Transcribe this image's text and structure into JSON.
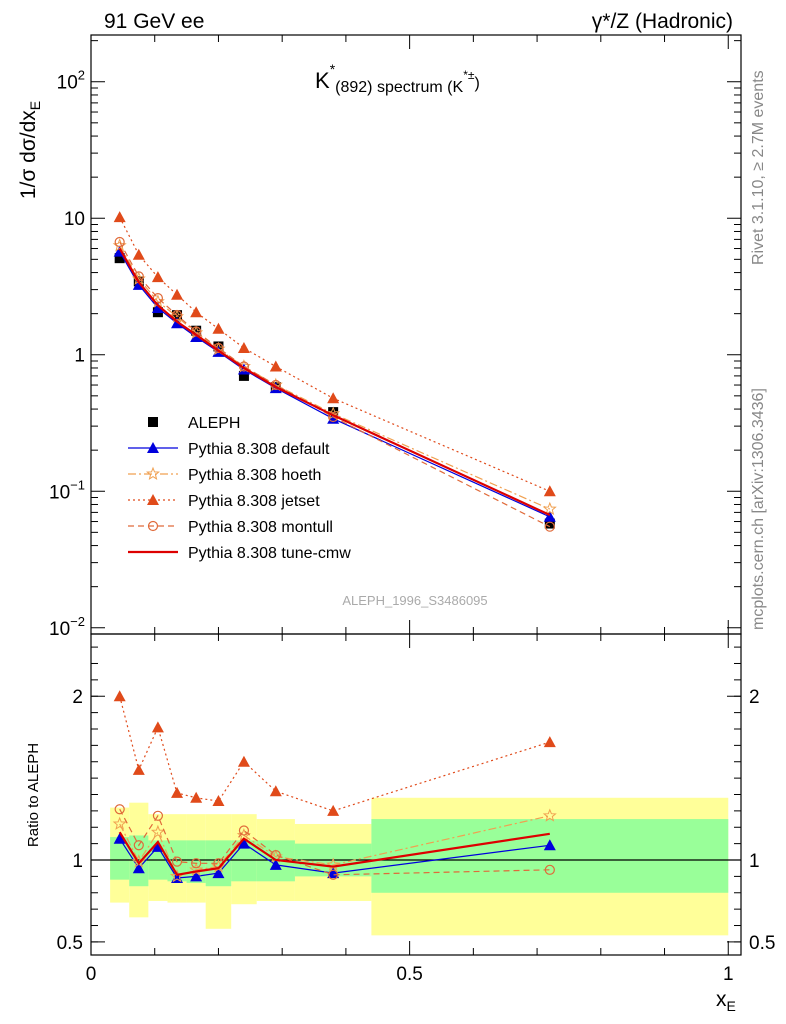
{
  "header": {
    "left": "91 GeV ee",
    "right": "γ*/Z (Hadronic)",
    "side_top": "Rivet 3.1.10, ≥ 2.7M events",
    "side_bottom": "mcplots.cern.ch [arXiv:1306.3436]"
  },
  "chart_data": [
    {
      "type": "line",
      "panel": "main",
      "title": "K*(892) spectrum (K*±)",
      "title_parts": {
        "base": "K",
        "sup": "*",
        "sub": "(892) spectrum (K",
        "sup2": "*±",
        "close": ")"
      },
      "ylabel": "1/σ dσ/dx_E",
      "ylabel_parts": {
        "main": "1/σ dσ/dx",
        "sub": "E"
      },
      "yscale": "log",
      "ylim": [
        0.009,
        220
      ],
      "xlim": [
        0,
        1.02
      ],
      "y_ticks": [
        {
          "value": 0.01,
          "label": "10",
          "exp": "−2"
        },
        {
          "value": 0.1,
          "label": "10",
          "exp": "−1"
        },
        {
          "value": 1,
          "label": "1",
          "exp": ""
        },
        {
          "value": 10,
          "label": "10",
          "exp": ""
        },
        {
          "value": 100,
          "label": "10",
          "exp": "2"
        }
      ],
      "watermark": "ALEPH_1996_S3486095",
      "legend_position": "bottom-left",
      "x": [
        0.045,
        0.075,
        0.105,
        0.135,
        0.165,
        0.2,
        0.24,
        0.29,
        0.38,
        0.72
      ],
      "series": [
        {
          "name": "ALEPH",
          "style": "data",
          "color": "#000000",
          "values": [
            5.1,
            3.45,
            2.05,
            1.95,
            1.5,
            1.15,
            0.7,
            0.58,
            0.38,
            0.058
          ]
        },
        {
          "name": "Pythia 8.308 default",
          "style": "solid",
          "marker": "triangle",
          "color": "#0000dd",
          "values": [
            5.7,
            3.25,
            2.2,
            1.7,
            1.35,
            1.05,
            0.78,
            0.57,
            0.34,
            0.065
          ]
        },
        {
          "name": "Pythia 8.308 hoeth",
          "style": "dashdot",
          "marker": "star",
          "color": "#f0a050",
          "values": [
            6.3,
            3.6,
            2.45,
            1.9,
            1.45,
            1.1,
            0.82,
            0.6,
            0.37,
            0.074
          ]
        },
        {
          "name": "Pythia 8.308 jetset",
          "style": "dotted",
          "marker": "triangle",
          "color": "#e04a1a",
          "values": [
            10.2,
            5.4,
            3.7,
            2.75,
            2.05,
            1.55,
            1.12,
            0.82,
            0.48,
            0.1
          ]
        },
        {
          "name": "Pythia 8.308 montull",
          "style": "dashed",
          "marker": "circle",
          "color": "#e06a3a",
          "values": [
            6.7,
            3.75,
            2.6,
            1.95,
            1.48,
            1.12,
            0.82,
            0.6,
            0.35,
            0.055
          ]
        },
        {
          "name": "Pythia 8.308 tune-cmw",
          "style": "solid",
          "marker": "none",
          "color": "#dd0000",
          "values": [
            6.0,
            3.4,
            2.3,
            1.75,
            1.4,
            1.07,
            0.8,
            0.58,
            0.36,
            0.067
          ]
        }
      ]
    },
    {
      "type": "line",
      "panel": "ratio",
      "ylabel": "Ratio to ALEPH",
      "xlabel": "x_E",
      "xlabel_parts": {
        "main": "x",
        "sub": "E"
      },
      "ylim": [
        0.42,
        2.38
      ],
      "xlim": [
        0,
        1.02
      ],
      "y_ticks": [
        {
          "value": 0.5,
          "label": "0.5"
        },
        {
          "value": 1,
          "label": "1"
        },
        {
          "value": 2,
          "label": "2"
        }
      ],
      "x_ticks": [
        {
          "value": 0,
          "label": "0"
        },
        {
          "value": 0.5,
          "label": "0.5"
        },
        {
          "value": 1,
          "label": "1"
        }
      ],
      "reference_line": 1,
      "bands": [
        {
          "x0": 0.03,
          "x1": 0.06,
          "stat_lo": 0.88,
          "stat_hi": 1.14,
          "tot_lo": 0.74,
          "tot_hi": 1.32
        },
        {
          "x0": 0.06,
          "x1": 0.09,
          "stat_lo": 0.84,
          "stat_hi": 1.15,
          "tot_lo": 0.65,
          "tot_hi": 1.35
        },
        {
          "x0": 0.09,
          "x1": 0.12,
          "stat_lo": 0.88,
          "stat_hi": 1.12,
          "tot_lo": 0.75,
          "tot_hi": 1.28
        },
        {
          "x0": 0.12,
          "x1": 0.15,
          "stat_lo": 0.87,
          "stat_hi": 1.12,
          "tot_lo": 0.74,
          "tot_hi": 1.28
        },
        {
          "x0": 0.15,
          "x1": 0.18,
          "stat_lo": 0.86,
          "stat_hi": 1.12,
          "tot_lo": 0.74,
          "tot_hi": 1.28
        },
        {
          "x0": 0.18,
          "x1": 0.22,
          "stat_lo": 0.84,
          "stat_hi": 1.12,
          "tot_lo": 0.58,
          "tot_hi": 1.28
        },
        {
          "x0": 0.22,
          "x1": 0.26,
          "stat_lo": 0.87,
          "stat_hi": 1.12,
          "tot_lo": 0.73,
          "tot_hi": 1.28
        },
        {
          "x0": 0.26,
          "x1": 0.32,
          "stat_lo": 0.87,
          "stat_hi": 1.12,
          "tot_lo": 0.75,
          "tot_hi": 1.25
        },
        {
          "x0": 0.32,
          "x1": 0.44,
          "stat_lo": 0.9,
          "stat_hi": 1.1,
          "tot_lo": 0.75,
          "tot_hi": 1.22
        },
        {
          "x0": 0.44,
          "x1": 1.0,
          "stat_lo": 0.8,
          "stat_hi": 1.25,
          "tot_lo": 0.54,
          "tot_hi": 1.38
        }
      ],
      "x": [
        0.045,
        0.075,
        0.105,
        0.135,
        0.165,
        0.2,
        0.24,
        0.29,
        0.38,
        0.72
      ],
      "series": [
        {
          "name": "Pythia 8.308 default",
          "style": "solid",
          "marker": "triangle",
          "color": "#0000dd",
          "values": [
            1.13,
            0.95,
            1.08,
            0.89,
            0.9,
            0.92,
            1.1,
            0.97,
            0.92,
            1.09
          ]
        },
        {
          "name": "Pythia 8.308 hoeth",
          "style": "dashdot",
          "marker": "star",
          "color": "#f0a050",
          "values": [
            1.22,
            0.99,
            1.17,
            0.9,
            0.94,
            0.96,
            1.15,
            1.02,
            0.97,
            1.27
          ]
        },
        {
          "name": "Pythia 8.308 jetset",
          "style": "dotted",
          "marker": "triangle",
          "color": "#e04a1a",
          "values": [
            2.0,
            1.55,
            1.81,
            1.41,
            1.38,
            1.36,
            1.6,
            1.42,
            1.3,
            1.72
          ]
        },
        {
          "name": "Pythia 8.308 montull",
          "style": "dashed",
          "marker": "circle",
          "color": "#e06a3a",
          "values": [
            1.31,
            1.09,
            1.27,
            0.99,
            0.98,
            0.98,
            1.18,
            1.03,
            0.91,
            0.94
          ]
        },
        {
          "name": "Pythia 8.308 tune-cmw",
          "style": "solid",
          "marker": "none",
          "color": "#dd0000",
          "values": [
            1.17,
            0.98,
            1.11,
            0.91,
            0.93,
            0.95,
            1.13,
            1.0,
            0.96,
            1.16
          ]
        }
      ]
    }
  ],
  "colors": {
    "stat_band": "#99ff99",
    "total_band": "#ffff99",
    "axis": "#000000",
    "watermark": "#aaaaaa",
    "side_text": "#888888"
  }
}
